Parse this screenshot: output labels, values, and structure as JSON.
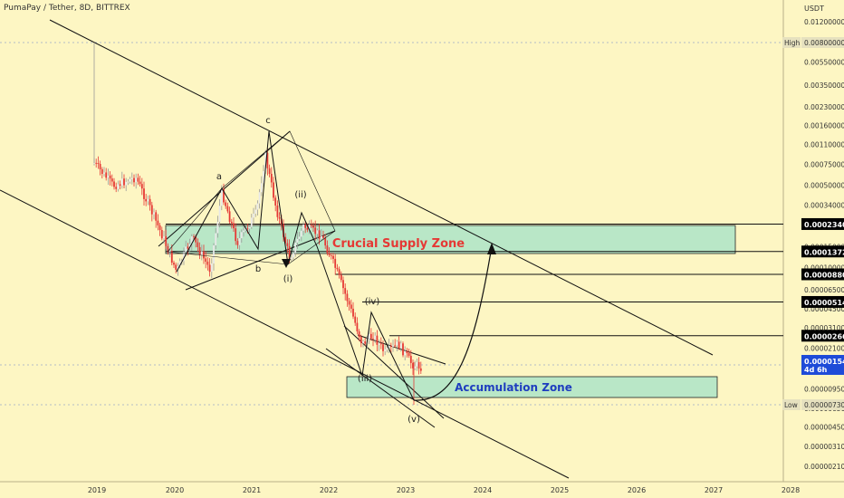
{
  "header": {
    "symbol_title": "PumaPay / Tether, 8D, BITTREX"
  },
  "colors": {
    "background": "#fdf6c3",
    "up": "#e8e8e8",
    "down": "#e53935",
    "zone_fill": "#a8e4c8",
    "supply_text": "#e53935",
    "accum_text": "#1e3dbf",
    "line": "#111111"
  },
  "chart_data": {
    "type": "candlestick",
    "y_scale": "log",
    "y_unit": "USDT",
    "y_ticks": [
      "0.01200000",
      "0.00550000",
      "0.00350000",
      "0.00230000",
      "0.00160000",
      "0.00110000",
      "0.00075000",
      "0.00050000",
      "0.00034000",
      "0.00015000",
      "0.00010000",
      "0.00006500",
      "0.00004500",
      "0.00003100",
      "0.00002100",
      "0.00001400",
      "0.00000950",
      "0.00000650",
      "0.00000450",
      "0.00000310",
      "0.00000210"
    ],
    "x_ticks": [
      "2019",
      "2020",
      "2021",
      "2022",
      "2023",
      "2024",
      "2025",
      "2026",
      "2027",
      "2028"
    ],
    "labels": {
      "high": {
        "tag": "High",
        "value": "0.00800000"
      },
      "low": {
        "tag": "Low",
        "value": "0.00000730"
      },
      "current": {
        "value": "0.00001549",
        "countdown": "4d 6h"
      }
    },
    "price_levels": [
      "0.00023408",
      "0.00013724",
      "0.00008801",
      "0.00005143",
      "0.00002665"
    ],
    "zones": [
      {
        "name": "Crucial Supply Zone"
      },
      {
        "name": "Accumulation Zone"
      }
    ],
    "wave_labels": [
      "a",
      "b",
      "c",
      "(i)",
      "(ii)",
      "(iii)",
      "(iv)",
      "(v)"
    ]
  }
}
